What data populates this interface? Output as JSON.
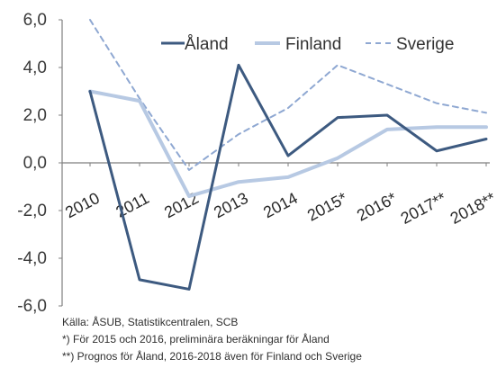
{
  "chart_data": {
    "type": "line",
    "categories": [
      "2010",
      "2011",
      "2012",
      "2013",
      "2014",
      "2015*",
      "2016*",
      "2017**",
      "2018**"
    ],
    "ylim": [
      -6,
      6
    ],
    "yticks": [
      "6,0",
      "4,0",
      "2,0",
      "0,0",
      "-2,0",
      "-4,0",
      "-6,0"
    ],
    "grid": false,
    "legend": "top",
    "series": [
      {
        "name": "Åland",
        "color": "#3d5a80",
        "style": "solid",
        "values": [
          3.0,
          -4.9,
          -5.3,
          4.1,
          0.3,
          1.9,
          2.0,
          0.5,
          1.0
        ]
      },
      {
        "name": "Finland",
        "color": "#b7c9e3",
        "style": "solid",
        "values": [
          3.0,
          2.6,
          -1.4,
          -0.8,
          -0.6,
          0.2,
          1.4,
          1.5,
          1.5
        ]
      },
      {
        "name": "Sverige",
        "color": "#8fa8d2",
        "style": "dashed",
        "values": [
          6.0,
          2.7,
          -0.3,
          1.2,
          2.3,
          4.1,
          3.3,
          2.5,
          2.1
        ]
      }
    ],
    "footnotes": [
      "Källa: ÅSUB, Statistikcentralen, SCB",
      "*) För 2015 och 2016, preliminära beräkningar för Åland",
      "**) Prognos för Åland, 2016-2018 även för Finland och Sverige"
    ]
  }
}
